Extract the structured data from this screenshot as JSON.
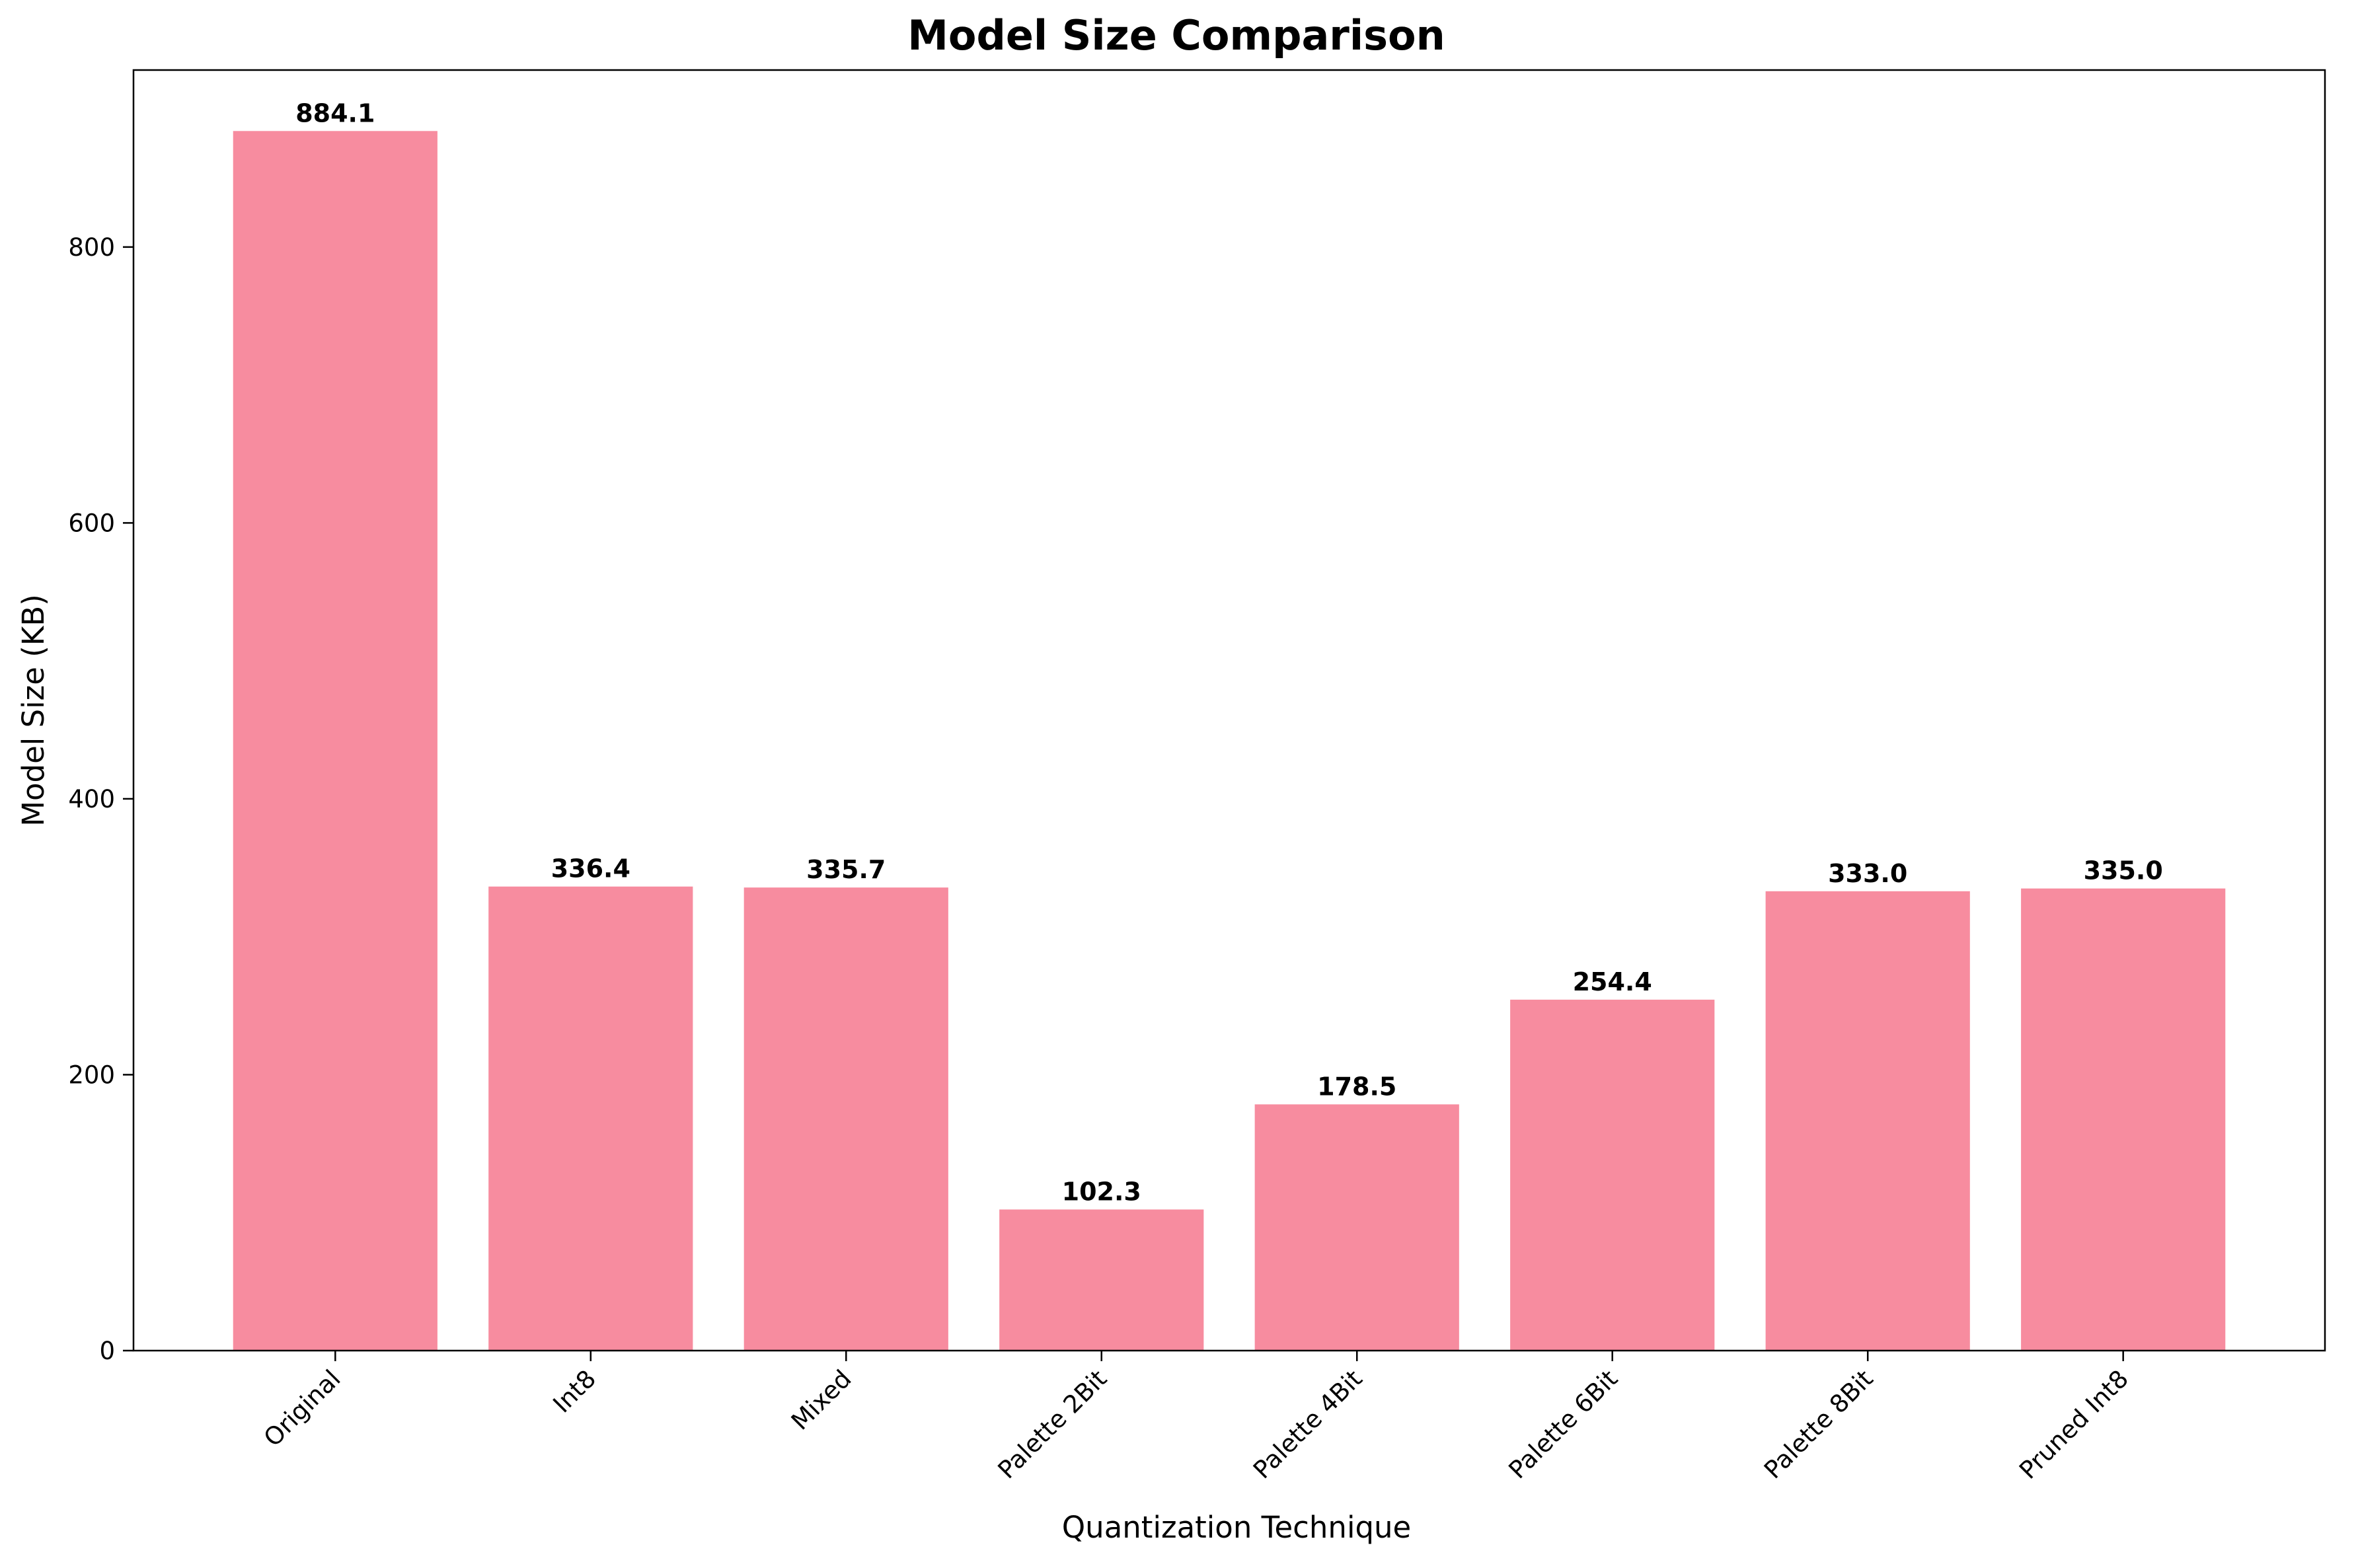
{
  "chart_data": {
    "type": "bar",
    "title": "Model Size Comparison",
    "xlabel": "Quantization Technique",
    "ylabel": "Model Size (KB)",
    "categories": [
      "Original",
      "Int8",
      "Mixed",
      "Palette 2Bit",
      "Palette 4Bit",
      "Palette 6Bit",
      "Palette 8Bit",
      "Pruned Int8"
    ],
    "values": [
      884.1,
      336.4,
      335.7,
      102.3,
      178.5,
      254.4,
      333.0,
      335.0
    ],
    "value_labels": [
      "884.1",
      "336.4",
      "335.7",
      "102.3",
      "178.5",
      "254.4",
      "333.0",
      "335.0"
    ],
    "ylim": [
      0,
      928.3
    ],
    "yticks": [
      0,
      200,
      400,
      600,
      800
    ],
    "bar_color": "#f78c9f",
    "grid": false,
    "legend": "none"
  }
}
